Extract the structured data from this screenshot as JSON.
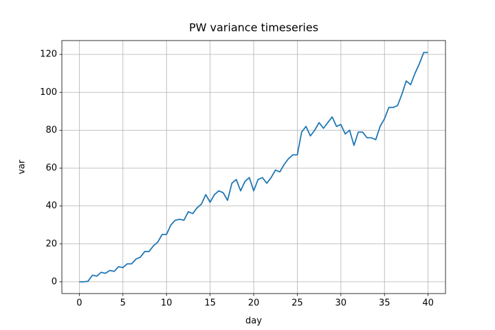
{
  "chart_data": {
    "type": "line",
    "title": "PW variance timeseries",
    "xlabel": "day",
    "ylabel": "var",
    "x": [
      0,
      0.5,
      1,
      1.5,
      2,
      2.5,
      3,
      3.5,
      4,
      4.5,
      5,
      5.5,
      6,
      6.5,
      7,
      7.5,
      8,
      8.5,
      9,
      9.5,
      10,
      10.5,
      11,
      11.5,
      12,
      12.5,
      13,
      13.5,
      14,
      14.5,
      15,
      15.5,
      16,
      16.5,
      17,
      17.5,
      18,
      18.5,
      19,
      19.5,
      20,
      20.5,
      21,
      21.5,
      22,
      22.5,
      23,
      23.5,
      24,
      24.5,
      25,
      25.5,
      26,
      26.5,
      27,
      27.5,
      28,
      28.5,
      29,
      29.5,
      30,
      30.5,
      31,
      31.5,
      32,
      32.5,
      33,
      33.5,
      34,
      34.5,
      35,
      35.5,
      36,
      36.5,
      37,
      37.5,
      38,
      38.5,
      39,
      39.5,
      40
    ],
    "series": [
      {
        "name": "var",
        "color": "#1f77b4",
        "values": [
          0,
          0,
          0.3,
          3.5,
          3,
          5,
          4.5,
          6,
          5.5,
          8,
          7.5,
          9.5,
          9.5,
          12,
          13,
          16,
          16,
          19,
          21,
          25,
          25,
          30,
          32.5,
          33,
          32.5,
          37,
          36,
          39,
          41,
          46,
          42,
          46,
          48,
          47,
          43,
          52,
          54,
          48,
          53,
          55,
          48,
          54,
          55,
          52,
          55,
          59,
          58,
          62,
          65,
          67,
          67,
          79,
          82,
          77,
          80,
          84,
          81,
          84,
          87,
          82,
          83,
          78,
          80,
          72,
          79,
          79,
          76,
          76,
          75,
          82,
          86,
          92,
          92,
          93,
          99,
          106,
          104,
          110,
          115,
          121,
          121
        ]
      }
    ],
    "xlim": [
      -2,
      42
    ],
    "ylim": [
      -6.2,
      127.3
    ],
    "xticks": [
      0,
      5,
      10,
      15,
      20,
      25,
      30,
      35,
      40
    ],
    "yticks": [
      0,
      20,
      40,
      60,
      80,
      100,
      120
    ],
    "grid": true
  }
}
